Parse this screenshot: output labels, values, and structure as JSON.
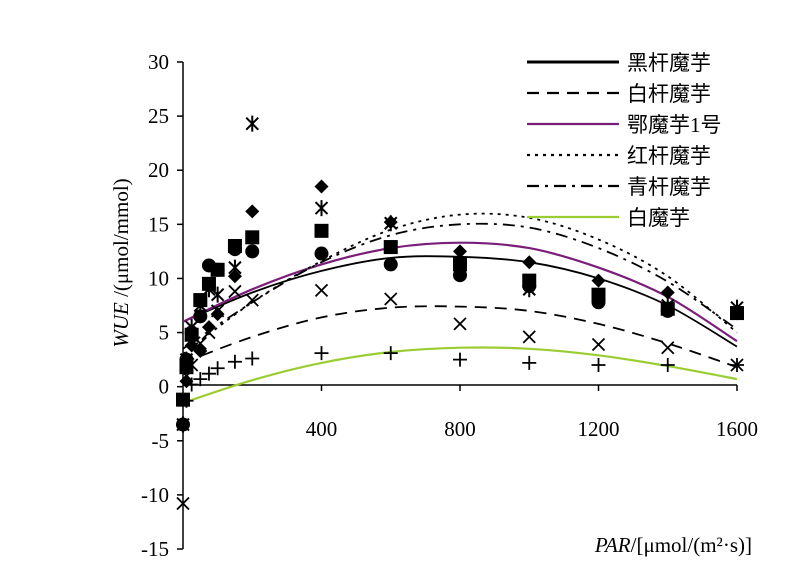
{
  "chart_data": {
    "type": "scatter",
    "xlabel_var": "PAR",
    "xlabel_unit": "/[μmol/(m²·s)]",
    "ylabel_var": "WUE",
    "ylabel_unit": " /(μmol/mmol)",
    "xlim": [
      0,
      1600
    ],
    "ylim": [
      -15,
      30
    ],
    "x_ticks": [
      400,
      800,
      1200,
      1600
    ],
    "y_ticks": [
      30,
      25,
      20,
      15,
      10,
      5,
      0,
      -5,
      -10,
      -15
    ],
    "grid": false,
    "legend_position": "top-right",
    "series": [
      {
        "name": "黑杆魔芋",
        "marker": "diamond",
        "line_style": "solid",
        "color": "#000000",
        "points": [
          [
            0,
            -1.2
          ],
          [
            10,
            0.5
          ],
          [
            25,
            3.8
          ],
          [
            50,
            3.3
          ],
          [
            75,
            5.5
          ],
          [
            100,
            6.7
          ],
          [
            150,
            10.2
          ],
          [
            200,
            16.2
          ],
          [
            400,
            18.5
          ],
          [
            600,
            15.2
          ],
          [
            800,
            12.5
          ],
          [
            1000,
            11.5
          ],
          [
            1200,
            9.8
          ],
          [
            1400,
            8.7
          ],
          [
            1600,
            7.0
          ]
        ],
        "fit": [
          [
            0,
            6.0
          ],
          [
            200,
            8.7
          ],
          [
            400,
            10.7
          ],
          [
            600,
            11.9
          ],
          [
            800,
            12.0
          ],
          [
            1000,
            11.5
          ],
          [
            1200,
            10.0
          ],
          [
            1400,
            7.5
          ],
          [
            1600,
            3.7
          ]
        ]
      },
      {
        "name": "白杆魔芋",
        "marker": "x",
        "line_style": "dashed",
        "color": "#000000",
        "points": [
          [
            0,
            -10.8
          ],
          [
            10,
            1.0
          ],
          [
            25,
            2.0
          ],
          [
            50,
            4.0
          ],
          [
            75,
            5.0
          ],
          [
            100,
            7.0
          ],
          [
            150,
            8.8
          ],
          [
            200,
            8.0
          ],
          [
            400,
            8.9
          ],
          [
            600,
            8.1
          ],
          [
            800,
            5.8
          ],
          [
            1000,
            4.6
          ],
          [
            1200,
            3.9
          ],
          [
            1400,
            3.6
          ],
          [
            1600,
            2.0
          ]
        ],
        "fit": [
          [
            0,
            2.2
          ],
          [
            200,
            4.6
          ],
          [
            400,
            6.4
          ],
          [
            600,
            7.3
          ],
          [
            800,
            7.4
          ],
          [
            1000,
            7.0
          ],
          [
            1200,
            5.8
          ],
          [
            1400,
            4.0
          ],
          [
            1600,
            1.8
          ]
        ]
      },
      {
        "name": " 鄂魔芋1号",
        "marker": "circle",
        "line_style": "solid",
        "color": "#7b1e7a",
        "points": [
          [
            0,
            -3.5
          ],
          [
            10,
            2.5
          ],
          [
            25,
            5.0
          ],
          [
            50,
            6.5
          ],
          [
            75,
            11.2
          ],
          [
            100,
            10.8
          ],
          [
            150,
            12.7
          ],
          [
            200,
            12.5
          ],
          [
            400,
            12.3
          ],
          [
            600,
            11.3
          ],
          [
            800,
            10.3
          ],
          [
            1000,
            9.3
          ],
          [
            1200,
            7.8
          ],
          [
            1400,
            7.0
          ],
          [
            1600,
            6.8
          ]
        ],
        "fit": [
          [
            0,
            6.0
          ],
          [
            200,
            9.0
          ],
          [
            400,
            11.3
          ],
          [
            600,
            12.8
          ],
          [
            800,
            13.3
          ],
          [
            1000,
            12.8
          ],
          [
            1200,
            11.0
          ],
          [
            1400,
            8.3
          ],
          [
            1600,
            4.2
          ]
        ]
      },
      {
        "name": "红杆魔芋",
        "marker": "square",
        "line_style": "dotted",
        "color": "#000000",
        "points": [
          [
            0,
            -1.2
          ],
          [
            10,
            1.8
          ],
          [
            25,
            4.8
          ],
          [
            50,
            8.0
          ],
          [
            75,
            9.5
          ],
          [
            100,
            10.8
          ],
          [
            150,
            13.0
          ],
          [
            200,
            13.8
          ],
          [
            400,
            14.4
          ],
          [
            600,
            12.9
          ],
          [
            800,
            11.3
          ],
          [
            1000,
            9.8
          ],
          [
            1200,
            8.5
          ],
          [
            1400,
            7.2
          ],
          [
            1600,
            6.8
          ]
        ],
        "fit": [
          [
            0,
            3.0
          ],
          [
            200,
            7.8
          ],
          [
            400,
            11.6
          ],
          [
            600,
            14.5
          ],
          [
            800,
            15.9
          ],
          [
            1000,
            15.6
          ],
          [
            1200,
            13.6
          ],
          [
            1400,
            10.2
          ],
          [
            1600,
            5.0
          ]
        ]
      },
      {
        "name": "青杆魔芋",
        "marker": "star",
        "line_style": "dashdot",
        "color": "#000000",
        "points": [
          [
            0,
            -3.5
          ],
          [
            10,
            2.5
          ],
          [
            25,
            5.5
          ],
          [
            50,
            7.5
          ],
          [
            75,
            9.0
          ],
          [
            100,
            8.5
          ],
          [
            150,
            11.0
          ],
          [
            200,
            24.3
          ],
          [
            400,
            16.5
          ],
          [
            600,
            15.1
          ],
          [
            800,
            11.0
          ],
          [
            1000,
            9.0
          ],
          [
            1200,
            8.2
          ],
          [
            1400,
            7.5
          ],
          [
            1600,
            7.3
          ]
        ],
        "fit": [
          [
            0,
            3.5
          ],
          [
            200,
            7.8
          ],
          [
            400,
            11.5
          ],
          [
            600,
            14.0
          ],
          [
            800,
            15.0
          ],
          [
            1000,
            14.7
          ],
          [
            1200,
            12.8
          ],
          [
            1400,
            9.7
          ],
          [
            1600,
            5.3
          ]
        ]
      },
      {
        "name": "白魔芋",
        "marker": "plus",
        "line_style": "solid",
        "color": "#9acd32",
        "points": [
          [
            0,
            -3.5
          ],
          [
            10,
            -1.3
          ],
          [
            25,
            0.2
          ],
          [
            50,
            0.7
          ],
          [
            75,
            1.2
          ],
          [
            100,
            1.7
          ],
          [
            150,
            2.3
          ],
          [
            200,
            2.6
          ],
          [
            400,
            3.1
          ],
          [
            600,
            3.1
          ],
          [
            800,
            2.5
          ],
          [
            1000,
            2.2
          ],
          [
            1200,
            2.0
          ],
          [
            1400,
            2.0
          ],
          [
            1600,
            2.0
          ]
        ],
        "fit": [
          [
            0,
            -1.5
          ],
          [
            200,
            0.6
          ],
          [
            400,
            2.2
          ],
          [
            600,
            3.2
          ],
          [
            800,
            3.6
          ],
          [
            1000,
            3.5
          ],
          [
            1200,
            2.9
          ],
          [
            1400,
            1.9
          ],
          [
            1600,
            0.7
          ]
        ]
      }
    ]
  }
}
